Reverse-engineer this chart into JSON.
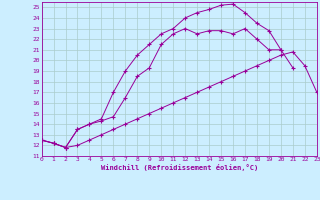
{
  "xlabel": "Windchill (Refroidissement éolien,°C)",
  "bg_color": "#cceeff",
  "line_color": "#990099",
  "grid_color": "#aacccc",
  "xlim": [
    0,
    23
  ],
  "ylim": [
    11,
    25.5
  ],
  "xticks": [
    0,
    1,
    2,
    3,
    4,
    5,
    6,
    7,
    8,
    9,
    10,
    11,
    12,
    13,
    14,
    15,
    16,
    17,
    18,
    19,
    20,
    21,
    22,
    23
  ],
  "yticks": [
    11,
    12,
    13,
    14,
    15,
    16,
    17,
    18,
    19,
    20,
    21,
    22,
    23,
    24,
    25
  ],
  "line1_x": [
    0,
    1,
    2,
    3,
    4,
    5,
    6,
    7,
    8,
    9,
    10,
    11,
    12,
    13,
    14,
    15,
    16,
    17,
    18,
    19,
    20,
    21,
    22,
    23
  ],
  "line1_y": [
    12.5,
    12.2,
    11.8,
    12.0,
    12.5,
    13.0,
    13.5,
    14.0,
    14.5,
    15.0,
    15.5,
    16.0,
    16.5,
    17.0,
    17.5,
    18.0,
    18.5,
    19.0,
    19.5,
    20.0,
    20.5,
    20.8,
    19.5,
    17.0
  ],
  "line2_x": [
    0,
    1,
    2,
    3,
    4,
    5,
    6,
    7,
    8,
    9,
    10,
    11,
    12,
    13,
    14,
    15,
    16,
    17,
    18,
    19,
    20
  ],
  "line2_y": [
    12.5,
    12.2,
    11.8,
    13.5,
    14.0,
    14.5,
    17.0,
    19.0,
    20.5,
    21.5,
    22.5,
    23.0,
    24.0,
    24.5,
    24.8,
    25.2,
    25.3,
    24.5,
    23.5,
    22.8,
    21.0
  ],
  "line3_x": [
    0,
    1,
    2,
    3,
    4,
    5,
    6,
    7,
    8,
    9,
    10,
    11,
    12,
    13,
    14,
    15,
    16,
    17,
    18,
    19,
    20,
    21
  ],
  "line3_y": [
    12.5,
    12.2,
    11.8,
    13.5,
    14.0,
    14.3,
    14.7,
    16.5,
    18.5,
    19.3,
    21.5,
    22.5,
    23.0,
    22.5,
    22.8,
    22.8,
    22.5,
    23.0,
    22.0,
    21.0,
    21.0,
    19.3
  ]
}
